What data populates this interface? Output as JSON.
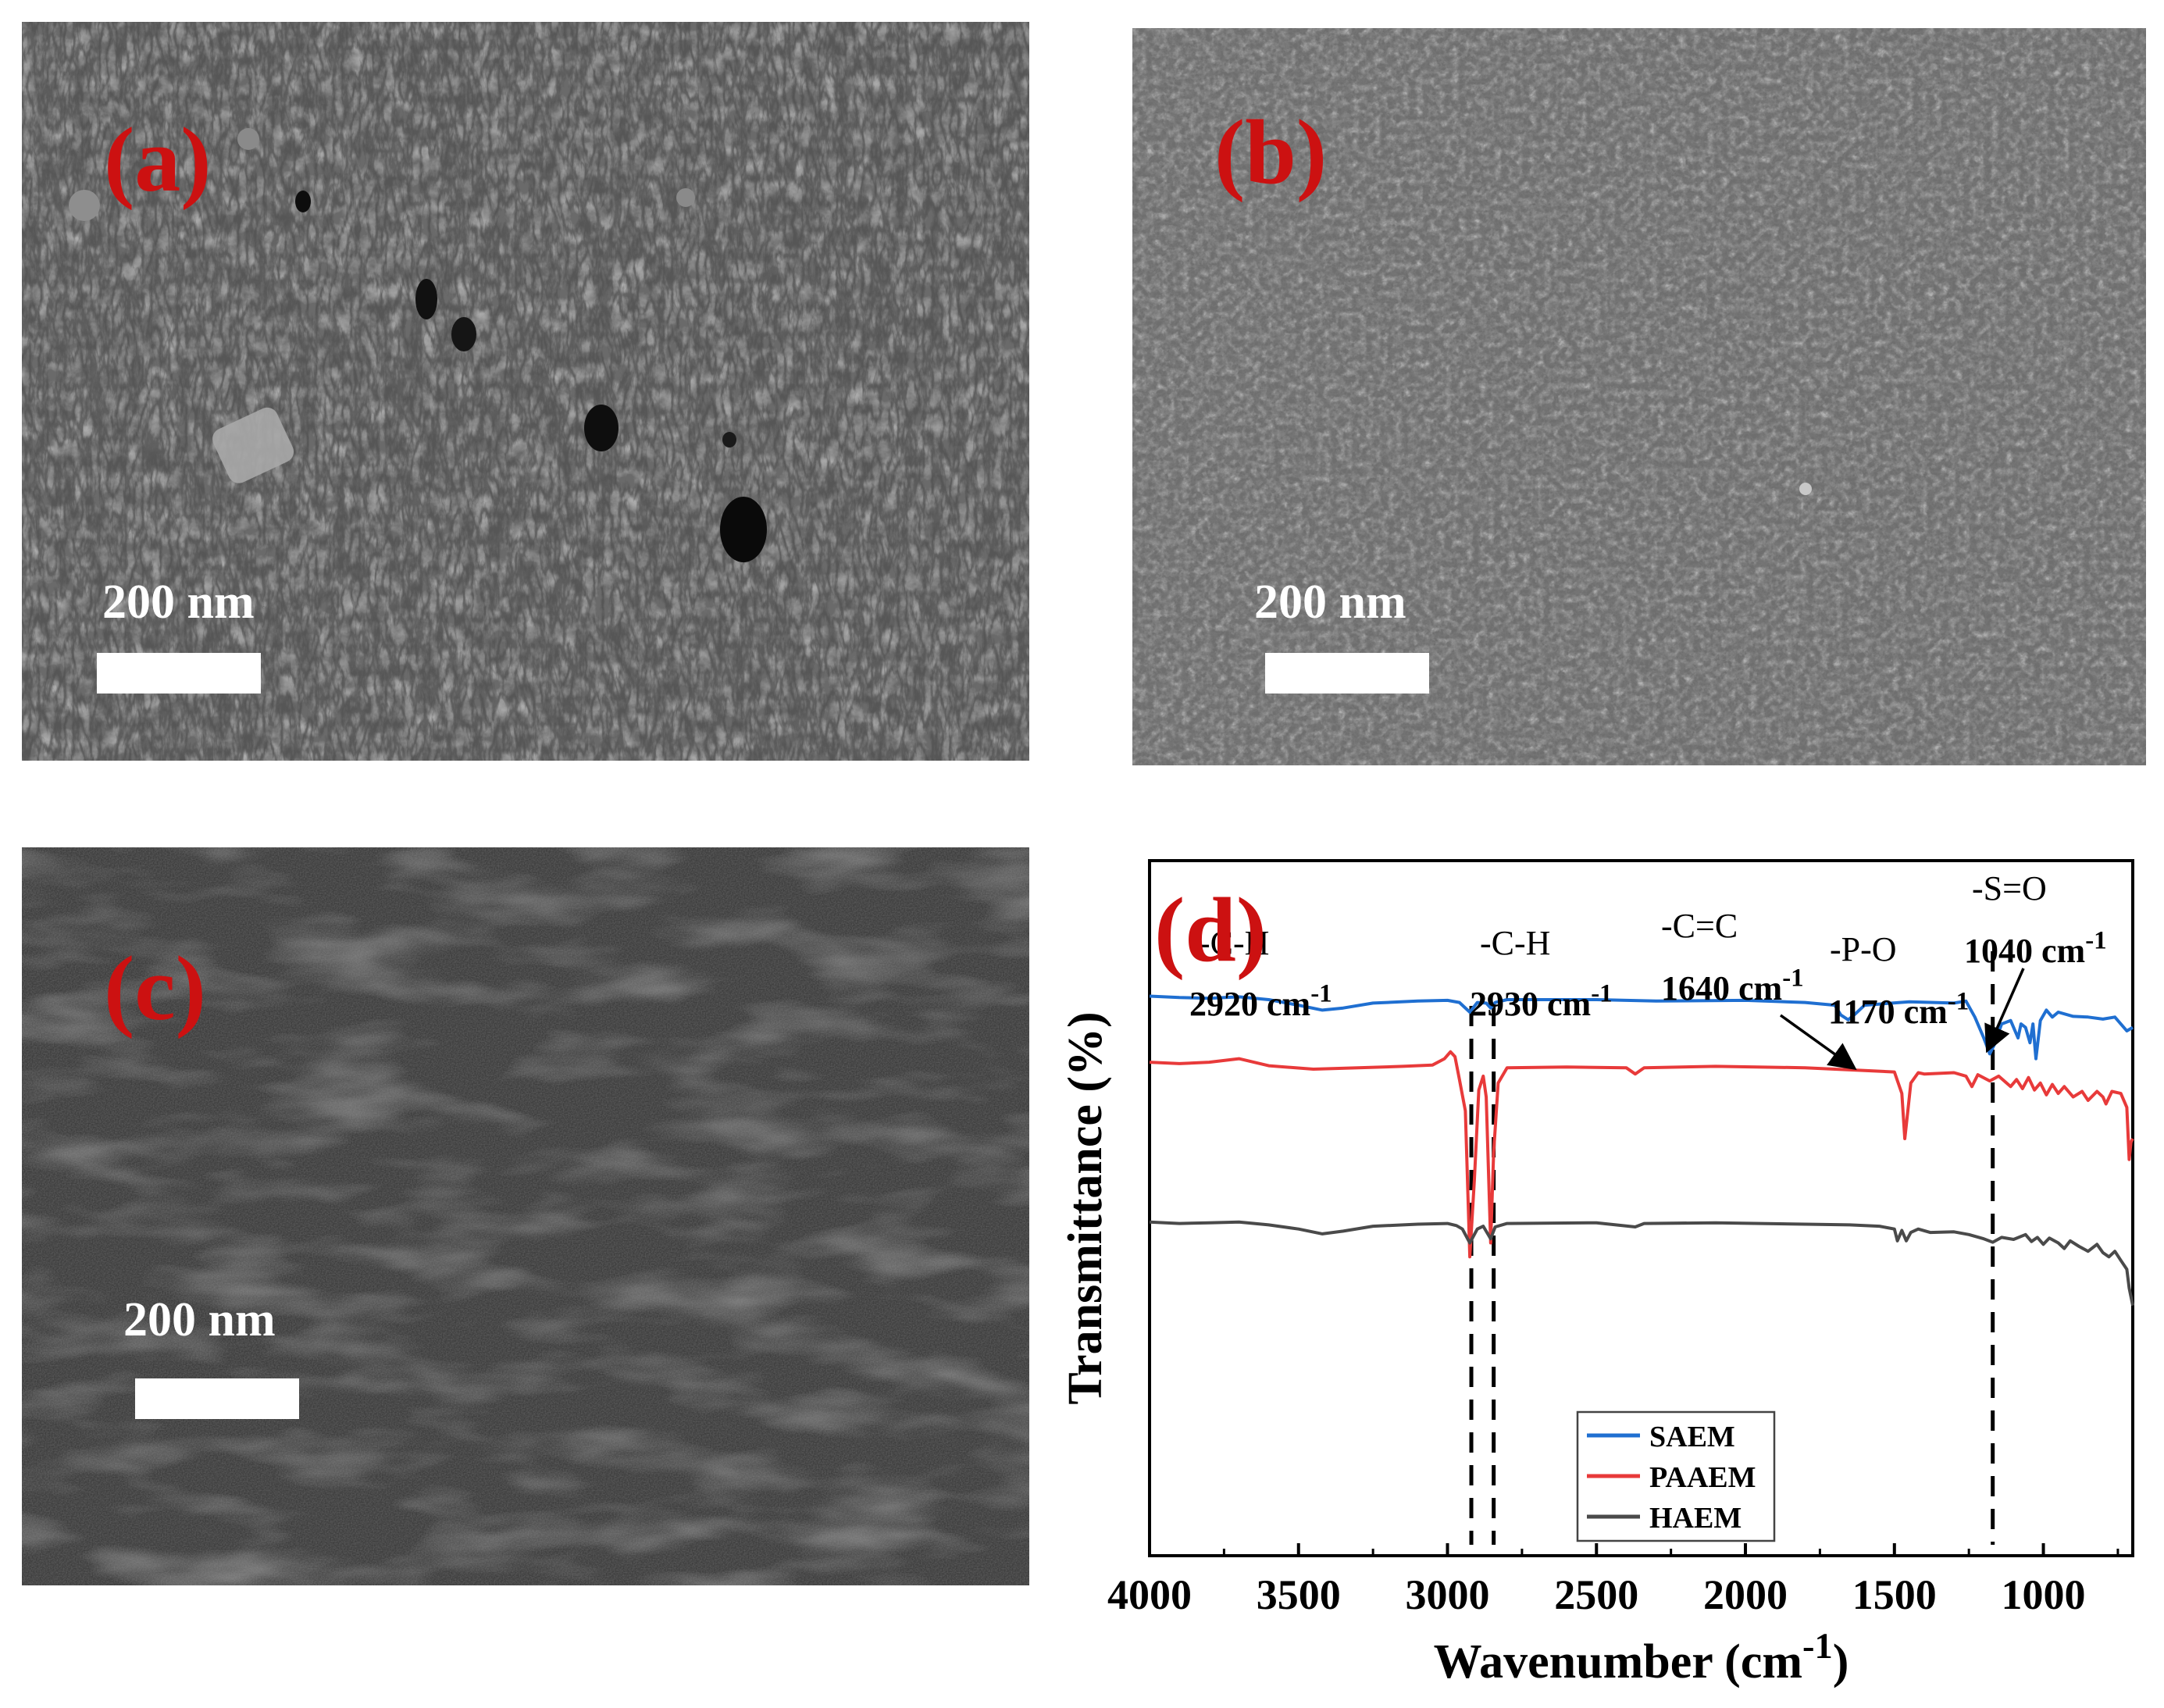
{
  "panels": [
    {
      "label": "(a)",
      "scale_bar_text": "200 nm",
      "texture": "cracked"
    },
    {
      "label": "(b)",
      "scale_bar_text": "200 nm",
      "texture": "fine"
    },
    {
      "label": "(c)",
      "scale_bar_text": "200 nm",
      "texture": "smooth"
    }
  ],
  "chart_data": {
    "type": "line",
    "panel_label": "(d)",
    "xlabel": "Wavenumber (cm",
    "xlabel_sup": "-1",
    "xlabel_close": ")",
    "ylabel": "Transmittance (%)",
    "xlim": [
      4000,
      700
    ],
    "x_reversed": true,
    "ylim": [
      0,
      100
    ],
    "y_ticks_shown": false,
    "x_ticks": [
      4000,
      3500,
      3000,
      2500,
      2000,
      1500,
      1000
    ],
    "legend_position": "bottom-right",
    "series": [
      {
        "name": "SAEM",
        "color": "#1f6fd1",
        "points": [
          [
            4000,
            80.5
          ],
          [
            3900,
            80.3
          ],
          [
            3800,
            80.2
          ],
          [
            3700,
            80.4
          ],
          [
            3600,
            80
          ],
          [
            3500,
            79.2
          ],
          [
            3420,
            78.5
          ],
          [
            3350,
            78.8
          ],
          [
            3250,
            79.5
          ],
          [
            3100,
            79.8
          ],
          [
            3000,
            79.9
          ],
          [
            2960,
            79.6
          ],
          [
            2925,
            78.2
          ],
          [
            2900,
            79.6
          ],
          [
            2870,
            79.5
          ],
          [
            2855,
            78.8
          ],
          [
            2840,
            79.6
          ],
          [
            2800,
            80
          ],
          [
            2500,
            80
          ],
          [
            2300,
            79.8
          ],
          [
            2000,
            79.9
          ],
          [
            1800,
            79.6
          ],
          [
            1700,
            79.2
          ],
          [
            1680,
            77.8
          ],
          [
            1655,
            77.1
          ],
          [
            1630,
            78
          ],
          [
            1600,
            79.2
          ],
          [
            1450,
            79.7
          ],
          [
            1300,
            79.5
          ],
          [
            1260,
            79.8
          ],
          [
            1230,
            77.5
          ],
          [
            1200,
            74.5
          ],
          [
            1180,
            72.2
          ],
          [
            1165,
            73.5
          ],
          [
            1140,
            76.5
          ],
          [
            1110,
            77
          ],
          [
            1085,
            74.5
          ],
          [
            1075,
            76.5
          ],
          [
            1060,
            76
          ],
          [
            1045,
            73.8
          ],
          [
            1035,
            76.5
          ],
          [
            1025,
            71.5
          ],
          [
            1010,
            77
          ],
          [
            990,
            78.5
          ],
          [
            970,
            77.5
          ],
          [
            950,
            78.2
          ],
          [
            900,
            77.6
          ],
          [
            850,
            77.5
          ],
          [
            800,
            77.2
          ],
          [
            760,
            77.5
          ],
          [
            720,
            75.5
          ],
          [
            700,
            76
          ]
        ]
      },
      {
        "name": "PAAEM",
        "color": "#e83a3a",
        "points": [
          [
            4000,
            71
          ],
          [
            3900,
            70.8
          ],
          [
            3800,
            71
          ],
          [
            3700,
            71.5
          ],
          [
            3600,
            70.5
          ],
          [
            3450,
            70
          ],
          [
            3300,
            70.2
          ],
          [
            3150,
            70.4
          ],
          [
            3050,
            70.6
          ],
          [
            3010,
            71.5
          ],
          [
            2990,
            72.5
          ],
          [
            2975,
            71.8
          ],
          [
            2960,
            68.5
          ],
          [
            2940,
            64
          ],
          [
            2925,
            43
          ],
          [
            2910,
            54
          ],
          [
            2895,
            67
          ],
          [
            2880,
            69
          ],
          [
            2870,
            66
          ],
          [
            2855,
            45
          ],
          [
            2845,
            58
          ],
          [
            2830,
            68
          ],
          [
            2800,
            70.2
          ],
          [
            2600,
            70.3
          ],
          [
            2400,
            70.2
          ],
          [
            2370,
            69.3
          ],
          [
            2340,
            70.2
          ],
          [
            2100,
            70.4
          ],
          [
            1800,
            70.2
          ],
          [
            1700,
            70
          ],
          [
            1600,
            69.8
          ],
          [
            1500,
            69.6
          ],
          [
            1475,
            66.5
          ],
          [
            1465,
            60
          ],
          [
            1455,
            64
          ],
          [
            1445,
            68
          ],
          [
            1420,
            69.5
          ],
          [
            1400,
            69.3
          ],
          [
            1300,
            69.5
          ],
          [
            1260,
            69
          ],
          [
            1240,
            67.5
          ],
          [
            1220,
            69.2
          ],
          [
            1180,
            68.3
          ],
          [
            1150,
            69
          ],
          [
            1110,
            67.5
          ],
          [
            1090,
            68.5
          ],
          [
            1070,
            67.2
          ],
          [
            1050,
            68.8
          ],
          [
            1030,
            67
          ],
          [
            1010,
            68
          ],
          [
            990,
            66.3
          ],
          [
            970,
            67.8
          ],
          [
            950,
            66.5
          ],
          [
            930,
            67.5
          ],
          [
            900,
            66
          ],
          [
            870,
            66.8
          ],
          [
            850,
            65.5
          ],
          [
            820,
            66.8
          ],
          [
            800,
            66
          ],
          [
            790,
            65
          ],
          [
            770,
            66.8
          ],
          [
            740,
            66.5
          ],
          [
            720,
            64.5
          ],
          [
            712,
            57
          ],
          [
            706,
            59.5
          ],
          [
            700,
            60
          ]
        ]
      },
      {
        "name": "HAEM",
        "color": "#4a4a4a",
        "points": [
          [
            4000,
            48
          ],
          [
            3900,
            47.8
          ],
          [
            3800,
            47.9
          ],
          [
            3700,
            48
          ],
          [
            3600,
            47.6
          ],
          [
            3500,
            47
          ],
          [
            3420,
            46.3
          ],
          [
            3350,
            46.7
          ],
          [
            3250,
            47.4
          ],
          [
            3100,
            47.7
          ],
          [
            3000,
            47.8
          ],
          [
            2970,
            47.5
          ],
          [
            2950,
            47
          ],
          [
            2925,
            45
          ],
          [
            2900,
            47
          ],
          [
            2880,
            47.4
          ],
          [
            2855,
            45.6
          ],
          [
            2840,
            47.3
          ],
          [
            2800,
            47.8
          ],
          [
            2500,
            47.9
          ],
          [
            2370,
            47.3
          ],
          [
            2340,
            47.8
          ],
          [
            2100,
            47.9
          ],
          [
            1800,
            47.7
          ],
          [
            1650,
            47.6
          ],
          [
            1550,
            47.4
          ],
          [
            1500,
            47
          ],
          [
            1490,
            45.3
          ],
          [
            1475,
            46.8
          ],
          [
            1460,
            45.3
          ],
          [
            1445,
            46.5
          ],
          [
            1420,
            47
          ],
          [
            1380,
            46.5
          ],
          [
            1300,
            46.6
          ],
          [
            1250,
            46.2
          ],
          [
            1200,
            45.6
          ],
          [
            1170,
            45.1
          ],
          [
            1140,
            45.8
          ],
          [
            1100,
            45.5
          ],
          [
            1060,
            46.2
          ],
          [
            1040,
            45.2
          ],
          [
            1020,
            45.8
          ],
          [
            1000,
            44.8
          ],
          [
            980,
            45.7
          ],
          [
            950,
            45
          ],
          [
            930,
            44.2
          ],
          [
            910,
            45.3
          ],
          [
            880,
            44.5
          ],
          [
            850,
            43.8
          ],
          [
            820,
            44.8
          ],
          [
            800,
            43.6
          ],
          [
            780,
            43
          ],
          [
            760,
            43.8
          ],
          [
            740,
            42.5
          ],
          [
            720,
            41.2
          ],
          [
            712,
            38.5
          ],
          [
            700,
            36
          ]
        ]
      }
    ],
    "annotations": [
      {
        "group": "-C-H",
        "wavenumber": "2920 cm",
        "sup": "-1"
      },
      {
        "group": "-C-H",
        "wavenumber": "2930 cm",
        "sup": "-1"
      },
      {
        "group": "-C=C",
        "wavenumber": "1640 cm",
        "sup": "-1"
      },
      {
        "group": "-P-O",
        "wavenumber": "1170 cm",
        "sup": "-1"
      },
      {
        "group": "-S=O",
        "wavenumber": "1040 cm",
        "sup": "-1"
      }
    ],
    "dashed_markers": [
      2920,
      2845,
      1170
    ]
  }
}
